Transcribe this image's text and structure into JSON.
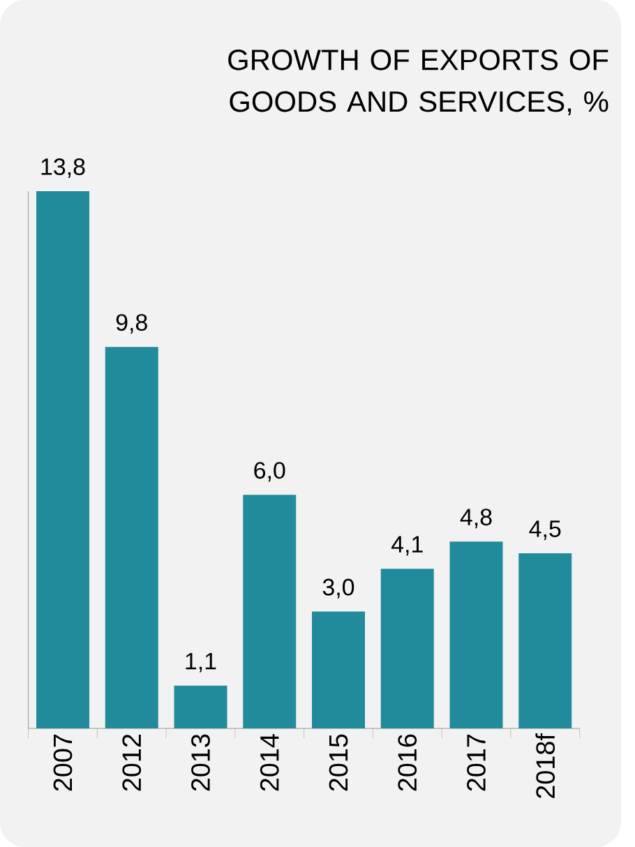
{
  "chart_data": {
    "type": "bar",
    "title": "GROWTH OF EXPORTS OF GOODS AND SERVICES, %",
    "categories": [
      "2007",
      "2012",
      "2013",
      "2014",
      "2015",
      "2016",
      "2017",
      "2018f"
    ],
    "values": [
      13.8,
      9.8,
      1.1,
      6.0,
      3.0,
      4.1,
      4.8,
      4.5
    ],
    "value_labels": [
      "13,8",
      "9,8",
      "1,1",
      "6,0",
      "3,0",
      "4,1",
      "4,8",
      "4,5"
    ],
    "color": "#228b9b"
  }
}
